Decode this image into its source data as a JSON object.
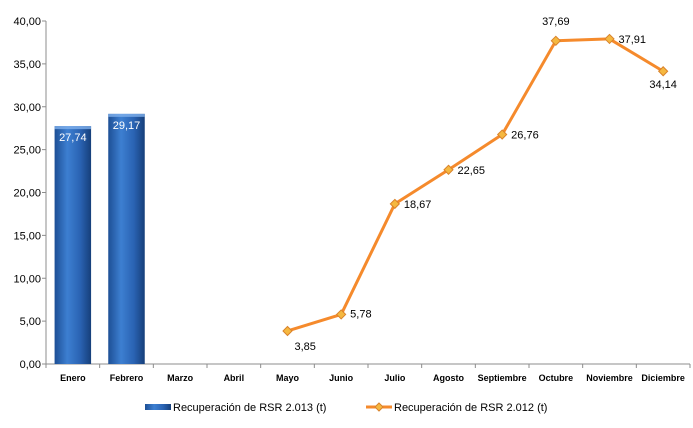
{
  "chart_data": {
    "type": "bar",
    "categories": [
      "Enero",
      "Febrero",
      "Marzo",
      "Abril",
      "Mayo",
      "Junio",
      "Julio",
      "Agosto",
      "Septiembre",
      "Octubre",
      "Noviembre",
      "Diciembre"
    ],
    "series": [
      {
        "name": "Recuperación de RSR 2.013 (t)",
        "type": "bar",
        "color": "#2e6cbf",
        "values": [
          27.74,
          29.17,
          null,
          null,
          null,
          null,
          null,
          null,
          null,
          null,
          null,
          null
        ],
        "labels": [
          "27,74",
          "29,17",
          "",
          "",
          "",
          "",
          "",
          "",
          "",
          "",
          "",
          ""
        ]
      },
      {
        "name": "Recuperación de RSR 2.012 (t)",
        "type": "line",
        "color": "#f58a2c",
        "marker_color": "#f5b840",
        "values": [
          null,
          null,
          null,
          null,
          3.85,
          5.78,
          18.67,
          22.65,
          26.76,
          37.69,
          37.91,
          34.14
        ],
        "labels": [
          "",
          "",
          "",
          "",
          "3,85",
          "5,78",
          "18,67",
          "22,65",
          "26,76",
          "37,69",
          "37,91",
          "34,14"
        ]
      }
    ],
    "yticks": [
      "0,00",
      "5,00",
      "10,00",
      "15,00",
      "20,00",
      "25,00",
      "30,00",
      "35,00",
      "40,00"
    ],
    "ylim": [
      0,
      40
    ],
    "ystep": 5,
    "grid": false,
    "legend_position": "bottom"
  }
}
